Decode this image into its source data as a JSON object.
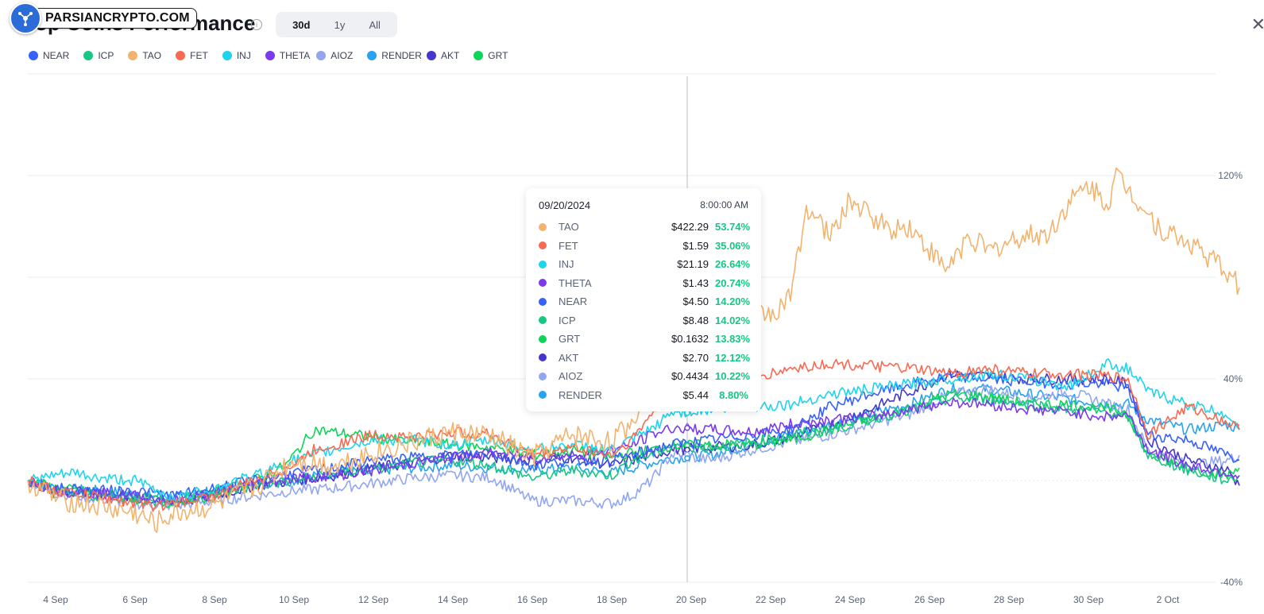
{
  "brand": {
    "watermark": "PARSIANCRYPTO.COM"
  },
  "header": {
    "title": "Top Coins Performance",
    "tabs": [
      {
        "label": "30d",
        "active": true
      },
      {
        "label": "1y",
        "active": false
      },
      {
        "label": "All",
        "active": false
      }
    ]
  },
  "legend": [
    {
      "name": "NEAR",
      "color": "#3861fb"
    },
    {
      "name": "ICP",
      "color": "#16c784"
    },
    {
      "name": "TAO",
      "color": "#f2b36f"
    },
    {
      "name": "FET",
      "color": "#f76b52"
    },
    {
      "name": "INJ",
      "color": "#1fd4ec"
    },
    {
      "name": "THETA",
      "color": "#7c3aed"
    },
    {
      "name": "AIOZ",
      "color": "#93a6f0"
    },
    {
      "name": "RENDER",
      "color": "#29a3f0"
    },
    {
      "name": "AKT",
      "color": "#4338ca"
    },
    {
      "name": "GRT",
      "color": "#0fd45a"
    }
  ],
  "tooltip": {
    "date": "09/20/2024",
    "time": "8:00:00 AM",
    "rows": [
      {
        "name": "TAO",
        "price": "$422.29",
        "change": "53.74%",
        "color": "#f2b36f"
      },
      {
        "name": "FET",
        "price": "$1.59",
        "change": "35.06%",
        "color": "#f76b52"
      },
      {
        "name": "INJ",
        "price": "$21.19",
        "change": "26.64%",
        "color": "#1fd4ec"
      },
      {
        "name": "THETA",
        "price": "$1.43",
        "change": "20.74%",
        "color": "#7c3aed"
      },
      {
        "name": "NEAR",
        "price": "$4.50",
        "change": "14.20%",
        "color": "#3861fb"
      },
      {
        "name": "ICP",
        "price": "$8.48",
        "change": "14.02%",
        "color": "#16c784"
      },
      {
        "name": "GRT",
        "price": "$0.1632",
        "change": "13.83%",
        "color": "#0fd45a"
      },
      {
        "name": "AKT",
        "price": "$2.70",
        "change": "12.12%",
        "color": "#4338ca"
      },
      {
        "name": "AIOZ",
        "price": "$0.4434",
        "change": "10.22%",
        "color": "#93a6f0"
      },
      {
        "name": "RENDER",
        "price": "$5.44",
        "change": "8.80%",
        "color": "#29a3f0"
      }
    ]
  },
  "chart_data": {
    "type": "line",
    "x_ticks": [
      "4 Sep",
      "6 Sep",
      "8 Sep",
      "10 Sep",
      "12 Sep",
      "14 Sep",
      "16 Sep",
      "18 Sep",
      "20 Sep",
      "22 Sep",
      "24 Sep",
      "26 Sep",
      "28 Sep",
      "30 Sep",
      "2 Oct"
    ],
    "y_ticks": [
      "120%",
      "40%",
      "-40%"
    ],
    "ylim": [
      -40,
      160
    ],
    "xlim": [
      3.8,
      34.3
    ],
    "x_unit": "day of September (2 Oct = 32)",
    "hover_day": 20.0,
    "series": [
      {
        "name": "TAO",
        "color": "#f2b36f",
        "x": [
          3.8,
          4.5,
          5.5,
          6.5,
          7.0,
          7.5,
          8.5,
          9.5,
          10.5,
          11.5,
          12.5,
          13.5,
          14.5,
          15.5,
          16.5,
          17.5,
          18.5,
          19.0,
          19.5,
          20.0,
          21.0,
          21.5,
          22.0,
          22.6,
          23.0,
          23.4,
          24.0,
          24.5,
          25.5,
          26.0,
          26.9,
          27.5,
          28.0,
          28.8,
          29.5,
          30.0,
          30.5,
          31.0,
          31.2,
          31.6,
          32.3,
          33.2,
          34.0,
          34.3
        ],
        "y": [
          0,
          -7,
          -10,
          -13,
          -17,
          -13,
          -10,
          -3,
          8,
          6,
          11,
          15,
          19,
          17,
          9,
          18,
          15,
          23,
          36,
          53.7,
          60,
          63,
          66,
          66,
          72,
          108,
          96,
          110,
          99,
          100,
          83,
          96,
          90,
          96,
          97,
          109,
          116,
          109,
          120,
          113,
          99,
          92,
          82,
          76
        ]
      },
      {
        "name": "FET",
        "color": "#f76b52",
        "x": [
          3.8,
          4.5,
          5.5,
          6.5,
          7.0,
          7.5,
          8.5,
          9.5,
          10.5,
          11.0,
          12.5,
          13.5,
          14.5,
          15.5,
          16.5,
          17.5,
          18.5,
          19.0,
          19.5,
          20.0,
          20.5,
          21.0,
          22.0,
          23.0,
          24.0,
          25.0,
          26.0,
          27.0,
          28.0,
          29.0,
          30.0,
          31.0,
          31.5,
          32.0,
          33.0,
          34.0,
          34.3
        ],
        "y": [
          0,
          -4,
          -6,
          -9,
          -10,
          -9,
          -6,
          0,
          6,
          12,
          18,
          17,
          19,
          18,
          10,
          13,
          10,
          16,
          26,
          35,
          36,
          38,
          40,
          44,
          46,
          45,
          44,
          42,
          44,
          42,
          42,
          41,
          40,
          18,
          29,
          23,
          20
        ]
      },
      {
        "name": "INJ",
        "color": "#1fd4ec",
        "x": [
          3.8,
          4.5,
          5.0,
          5.5,
          6.5,
          7.5,
          8.5,
          9.5,
          10.5,
          11.5,
          12.5,
          13.5,
          14.5,
          15.5,
          16.5,
          17.5,
          18.5,
          19.0,
          19.5,
          20.0,
          21.0,
          22.0,
          23.0,
          24.0,
          25.0,
          26.0,
          27.0,
          28.0,
          29.0,
          30.0,
          31.0,
          31.5,
          32.0,
          33.0,
          34.0,
          34.3
        ],
        "y": [
          0,
          2,
          3,
          1,
          0,
          -7,
          -3,
          2,
          8,
          12,
          16,
          16,
          14,
          16,
          12,
          14,
          12,
          16,
          20,
          26.6,
          28,
          29,
          30,
          34,
          36,
          38,
          40,
          42,
          40,
          37,
          46,
          44,
          35,
          30,
          26,
          22
        ]
      },
      {
        "name": "THETA",
        "color": "#7c3aed",
        "x": [
          3.8,
          4.5,
          5.5,
          6.5,
          7.5,
          8.5,
          9.5,
          10.5,
          11.5,
          12.5,
          13.5,
          14.5,
          15.5,
          16.5,
          17.5,
          18.5,
          19.0,
          19.5,
          20.0,
          21.0,
          22.0,
          23.0,
          24.0,
          25.0,
          26.0,
          27.0,
          28.0,
          29.0,
          30.0,
          31.0,
          31.5,
          32.0,
          33.0,
          34.0,
          34.3
        ],
        "y": [
          0,
          -4,
          -5,
          -6,
          -8,
          -5,
          -1,
          1,
          2,
          4,
          7,
          9,
          11,
          9,
          10,
          12,
          14,
          18,
          20.7,
          20,
          19,
          22,
          24,
          25,
          28,
          31,
          30,
          28,
          27,
          25,
          26,
          12,
          6,
          3,
          2
        ]
      },
      {
        "name": "NEAR",
        "color": "#3861fb",
        "x": [
          3.8,
          4.5,
          5.5,
          6.5,
          7.5,
          8.5,
          9.5,
          10.5,
          11.5,
          12.5,
          13.5,
          14.5,
          15.5,
          16.5,
          17.5,
          18.5,
          19.0,
          19.5,
          20.0,
          21.0,
          22.0,
          23.0,
          24.0,
          25.0,
          26.0,
          27.0,
          28.0,
          29.0,
          30.0,
          31.0,
          31.5,
          32.0,
          33.0,
          34.0,
          34.3
        ],
        "y": [
          0,
          -3,
          -4,
          -4,
          -6,
          -3,
          0,
          3,
          5,
          8,
          9,
          10,
          11,
          6,
          8,
          8,
          10,
          12,
          14.2,
          16,
          18,
          20,
          29,
          34,
          38,
          41,
          40,
          39,
          38,
          38,
          36,
          18,
          16,
          10,
          8
        ]
      },
      {
        "name": "ICP",
        "color": "#16c784",
        "x": [
          3.8,
          4.5,
          5.5,
          6.5,
          7.5,
          8.5,
          9.5,
          10.5,
          11.5,
          12.5,
          13.5,
          14.5,
          15.5,
          16.5,
          17.5,
          18.5,
          19.0,
          19.5,
          20.0,
          21.0,
          22.0,
          23.0,
          24.0,
          25.0,
          26.0,
          27.0,
          28.0,
          29.0,
          30.0,
          31.0,
          31.5,
          32.0,
          33.0,
          34.0,
          34.3
        ],
        "y": [
          0,
          -5,
          -6,
          -7,
          -9,
          -6,
          -2,
          0,
          3,
          4,
          7,
          8,
          6,
          1,
          4,
          2,
          8,
          10,
          14,
          13,
          15,
          18,
          20,
          24,
          28,
          32,
          32,
          30,
          28,
          27,
          25,
          10,
          4,
          0,
          2
        ]
      },
      {
        "name": "GRT",
        "color": "#0fd45a",
        "x": [
          3.8,
          4.5,
          5.5,
          6.5,
          7.5,
          8.5,
          9.5,
          10.3,
          11.0,
          12.0,
          13.0,
          14.5,
          15.5,
          16.5,
          17.5,
          18.5,
          19.0,
          19.5,
          20.0,
          21.0,
          22.0,
          23.0,
          24.0,
          25.0,
          26.0,
          27.0,
          28.0,
          29.0,
          30.0,
          31.0,
          31.5,
          32.0,
          33.0,
          34.0,
          34.3
        ],
        "y": [
          0,
          -3,
          -5,
          -7,
          -8,
          -5,
          0,
          6,
          20,
          18,
          16,
          14,
          13,
          10,
          12,
          9,
          11,
          12,
          13.8,
          14,
          14,
          16,
          20,
          24,
          28,
          34,
          33,
          30,
          30,
          28,
          26,
          10,
          5,
          2,
          5
        ]
      },
      {
        "name": "AKT",
        "color": "#4338ca",
        "x": [
          3.8,
          4.5,
          5.5,
          6.5,
          7.5,
          8.5,
          9.5,
          10.5,
          11.5,
          12.5,
          13.5,
          14.5,
          15.5,
          16.5,
          17.5,
          18.5,
          19.0,
          19.5,
          20.0,
          21.0,
          22.0,
          23.0,
          24.0,
          25.0,
          26.0,
          27.0,
          28.0,
          29.0,
          30.0,
          31.0,
          31.5,
          32.0,
          33.0,
          34.0,
          34.3
        ],
        "y": [
          0,
          -4,
          -5,
          -7,
          -9,
          -6,
          -2,
          0,
          2,
          5,
          7,
          10,
          9,
          8,
          9,
          6,
          8,
          10,
          12.1,
          13,
          14,
          17,
          22,
          28,
          35,
          42,
          41,
          40,
          40,
          40,
          38,
          16,
          8,
          4,
          -2
        ]
      },
      {
        "name": "AIOZ",
        "color": "#93a6f0",
        "x": [
          3.8,
          4.5,
          5.5,
          6.5,
          7.5,
          8.5,
          9.5,
          10.5,
          11.5,
          12.5,
          13.5,
          14.5,
          15.5,
          16.5,
          17.5,
          18.5,
          19.0,
          19.5,
          20.0,
          21.0,
          22.0,
          23.0,
          24.0,
          25.0,
          26.0,
          27.0,
          28.0,
          29.0,
          30.0,
          31.0,
          31.5,
          32.0,
          33.0,
          34.0,
          34.3
        ],
        "y": [
          0,
          -5,
          -7,
          -9,
          -10,
          -8,
          -6,
          -4,
          -3,
          -1,
          1,
          2,
          1,
          -8,
          -8,
          -9,
          -6,
          0,
          10.2,
          8,
          12,
          15,
          18,
          22,
          26,
          34,
          36,
          32,
          35,
          30,
          28,
          12,
          6,
          8,
          10
        ]
      },
      {
        "name": "RENDER",
        "color": "#29a3f0",
        "x": [
          3.8,
          4.5,
          5.5,
          6.5,
          7.5,
          8.5,
          9.5,
          10.5,
          11.5,
          12.5,
          13.5,
          14.5,
          15.5,
          16.5,
          17.5,
          18.5,
          19.0,
          19.5,
          20.0,
          21.0,
          22.0,
          23.0,
          24.0,
          25.0,
          26.0,
          27.0,
          28.0,
          29.0,
          30.0,
          31.0,
          31.5,
          32.0,
          33.0,
          34.0,
          34.3
        ],
        "y": [
          0,
          -3,
          -4,
          -5,
          -7,
          -4,
          -1,
          0,
          3,
          4,
          5,
          6,
          5,
          4,
          5,
          3,
          5,
          7,
          8.8,
          10,
          14,
          18,
          22,
          26,
          30,
          36,
          36,
          34,
          32,
          30,
          30,
          24,
          20,
          22,
          20
        ]
      }
    ]
  }
}
